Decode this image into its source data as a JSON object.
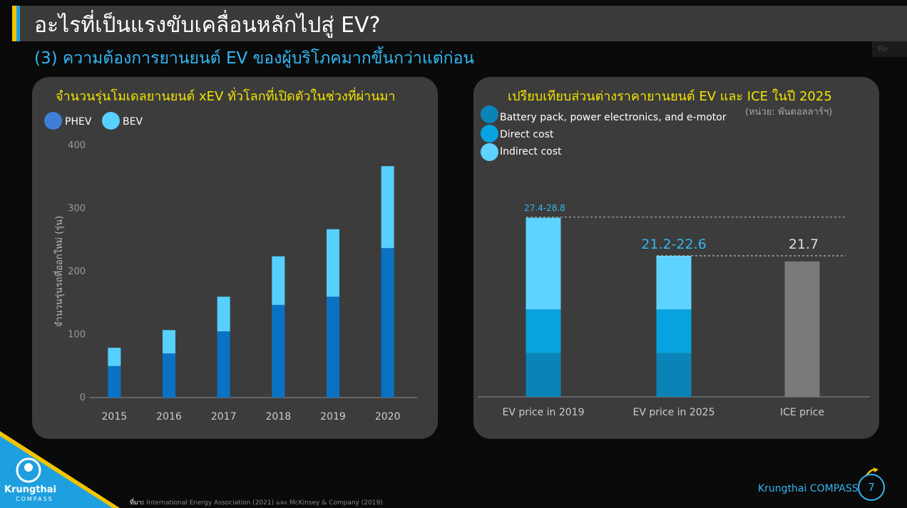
{
  "header": {
    "title": "อะไรที่เป็นแรงขับเคลื่อนหลักไปสู่ EV?",
    "subtitle": "(3) ความต้องการยานยนต์ EV ของผู้บริโภคมากขึ้นกว่าแต่ก่อน",
    "corner_tag": "Re"
  },
  "left_panel": {
    "title": "จำนวนรุ่นโมเดลยานยนต์ xEV ทั่วโลกที่เปิดตัวในช่วงที่ผ่านมา",
    "legend": [
      {
        "label": "PHEV",
        "color": "#3f7fd6"
      },
      {
        "label": "BEV",
        "color": "#55d0ff"
      }
    ]
  },
  "right_panel": {
    "title": "เปรียบเทียบส่วนต่างราคายานยนต์ EV และ ICE ในปี 2025",
    "unit": "(หน่วย: พันดอลลาร์ฯ)",
    "legend": [
      {
        "label": "Battery pack, power electronics, and e-motor",
        "color": "#0a84b8"
      },
      {
        "label": "Direct cost",
        "color": "#06a3e0"
      },
      {
        "label": "Indirect cost",
        "color": "#5fd3ff"
      }
    ]
  },
  "chart_data": [
    {
      "type": "bar",
      "stacked": true,
      "title": "จำนวนรุ่นโมเดลยานยนต์ xEV ทั่วโลกที่เปิดตัวในช่วงที่ผ่านมา",
      "ylabel": "จำนวนรุ่นรถที่ออกใหม่ (รุ่น)",
      "xlabel": "",
      "ylim": [
        0,
        400
      ],
      "yticks": [
        0,
        100,
        200,
        300,
        400
      ],
      "categories": [
        "2015",
        "2016",
        "2017",
        "2018",
        "2019",
        "2020"
      ],
      "series": [
        {
          "name": "PHEV",
          "color": "#0a72c4",
          "values": [
            50,
            70,
            105,
            147,
            160,
            237
          ]
        },
        {
          "name": "BEV",
          "color": "#55d0ff",
          "values": [
            29,
            37,
            55,
            77,
            107,
            130
          ]
        }
      ],
      "grid": false,
      "legend": "top-left"
    },
    {
      "type": "bar",
      "stacked": true,
      "title": "เปรียบเทียบส่วนต่างราคายานยนต์ EV และ ICE ในปี 2025",
      "unit": "(หน่วย: พันดอลลาร์ฯ)",
      "categories": [
        "EV price in 2019",
        "EV price in 2025",
        "ICE price"
      ],
      "ylim": [
        0,
        29
      ],
      "series": [
        {
          "name": "Battery pack, power electronics, and e-motor",
          "color": "#0a84b8",
          "values": [
            7.0,
            7.0,
            null
          ]
        },
        {
          "name": "Direct cost",
          "color": "#06a3e0",
          "values": [
            7.0,
            7.0,
            null
          ]
        },
        {
          "name": "Indirect cost",
          "color": "#5fd3ff",
          "values": [
            14.7,
            8.6,
            null
          ]
        },
        {
          "name": "ICE price",
          "color": "#7a7a7a",
          "values": [
            null,
            null,
            21.7
          ]
        }
      ],
      "data_labels": [
        "27.4-28.8",
        "21.2-22.6",
        "21.7"
      ],
      "reference_lines": [
        28.8,
        22.6
      ],
      "legend": "top-left"
    }
  ],
  "footer": {
    "source_label": "ที่มา:",
    "source": "International Energy Association (2021) และ McKinsey & Company (2019)",
    "brand": "Krungthai COMPASS",
    "page": "7",
    "logo_line1": "Krungthai",
    "logo_line2": "COMPASS"
  }
}
